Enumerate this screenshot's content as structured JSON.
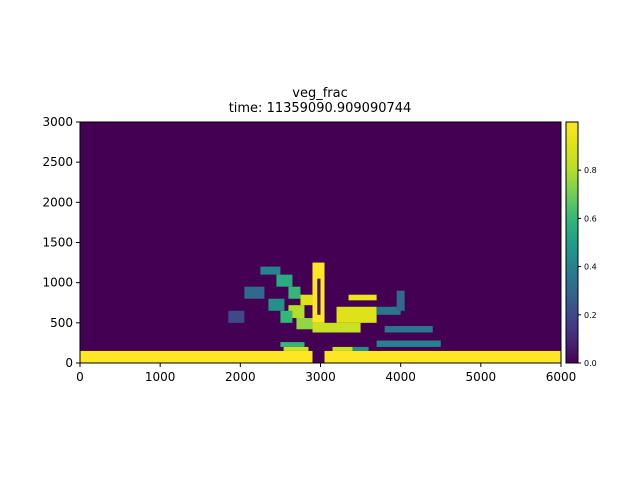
{
  "chart_data": {
    "type": "heatmap",
    "title": "veg_frac",
    "subtitle": "time: 11359090.909090744",
    "xlabel": "",
    "ylabel": "",
    "xlim": [
      0,
      6000
    ],
    "ylim": [
      0,
      3000
    ],
    "x_ticks": [
      0,
      1000,
      2000,
      3000,
      4000,
      5000,
      6000
    ],
    "y_ticks": [
      0,
      500,
      1000,
      1500,
      2000,
      2500,
      3000
    ],
    "colorbar": {
      "colormap": "viridis",
      "range": [
        0.0,
        1.0
      ],
      "ticks": [
        "0.0",
        "0.2",
        "0.4",
        "0.6",
        "0.8"
      ],
      "tick_values": [
        0.0,
        0.2,
        0.4,
        0.6,
        0.8
      ]
    },
    "background_value": 0.0,
    "regions": [
      {
        "x": [
          0,
          2900
        ],
        "y": [
          0,
          150
        ],
        "value": 1.0
      },
      {
        "x": [
          3050,
          6000
        ],
        "y": [
          0,
          150
        ],
        "value": 1.0
      },
      {
        "x": [
          2540,
          2850
        ],
        "y": [
          150,
          200
        ],
        "value": 0.85
      },
      {
        "x": [
          3150,
          3400
        ],
        "y": [
          150,
          200
        ],
        "value": 0.85
      },
      {
        "x": [
          3400,
          3600
        ],
        "y": [
          150,
          200
        ],
        "value": 0.45
      },
      {
        "x": [
          3700,
          4500
        ],
        "y": [
          200,
          280
        ],
        "value": 0.4
      },
      {
        "x": [
          2500,
          2800
        ],
        "y": [
          200,
          260
        ],
        "value": 0.6
      },
      {
        "x": [
          3800,
          4400
        ],
        "y": [
          380,
          460
        ],
        "value": 0.35
      },
      {
        "x": [
          2900,
          3500
        ],
        "y": [
          380,
          500
        ],
        "value": 0.85
      },
      {
        "x": [
          3200,
          3700
        ],
        "y": [
          500,
          700
        ],
        "value": 0.9
      },
      {
        "x": [
          3350,
          3700
        ],
        "y": [
          780,
          850
        ],
        "value": 0.95
      },
      {
        "x": [
          2700,
          2900
        ],
        "y": [
          420,
          560
        ],
        "value": 0.75
      },
      {
        "x": [
          2600,
          2800
        ],
        "y": [
          560,
          720
        ],
        "value": 0.8
      },
      {
        "x": [
          2750,
          2900
        ],
        "y": [
          720,
          850
        ],
        "value": 0.9
      },
      {
        "x": [
          2900,
          3050
        ],
        "y": [
          500,
          1250
        ],
        "value": 1.0
      },
      {
        "x": [
          2960,
          3000
        ],
        "y": [
          600,
          1050
        ],
        "value": 0.05
      },
      {
        "x": [
          2250,
          2500
        ],
        "y": [
          1100,
          1200
        ],
        "value": 0.4
      },
      {
        "x": [
          2450,
          2650
        ],
        "y": [
          950,
          1100
        ],
        "value": 0.55
      },
      {
        "x": [
          2600,
          2750
        ],
        "y": [
          800,
          950
        ],
        "value": 0.6
      },
      {
        "x": [
          2050,
          2300
        ],
        "y": [
          800,
          950
        ],
        "value": 0.3
      },
      {
        "x": [
          2350,
          2550
        ],
        "y": [
          650,
          800
        ],
        "value": 0.45
      },
      {
        "x": [
          2500,
          2650
        ],
        "y": [
          500,
          650
        ],
        "value": 0.6
      },
      {
        "x": [
          3700,
          4000
        ],
        "y": [
          600,
          700
        ],
        "value": 0.35
      },
      {
        "x": [
          3950,
          4050
        ],
        "y": [
          650,
          900
        ],
        "value": 0.3
      },
      {
        "x": [
          1850,
          2050
        ],
        "y": [
          500,
          650
        ],
        "value": 0.2
      }
    ]
  }
}
